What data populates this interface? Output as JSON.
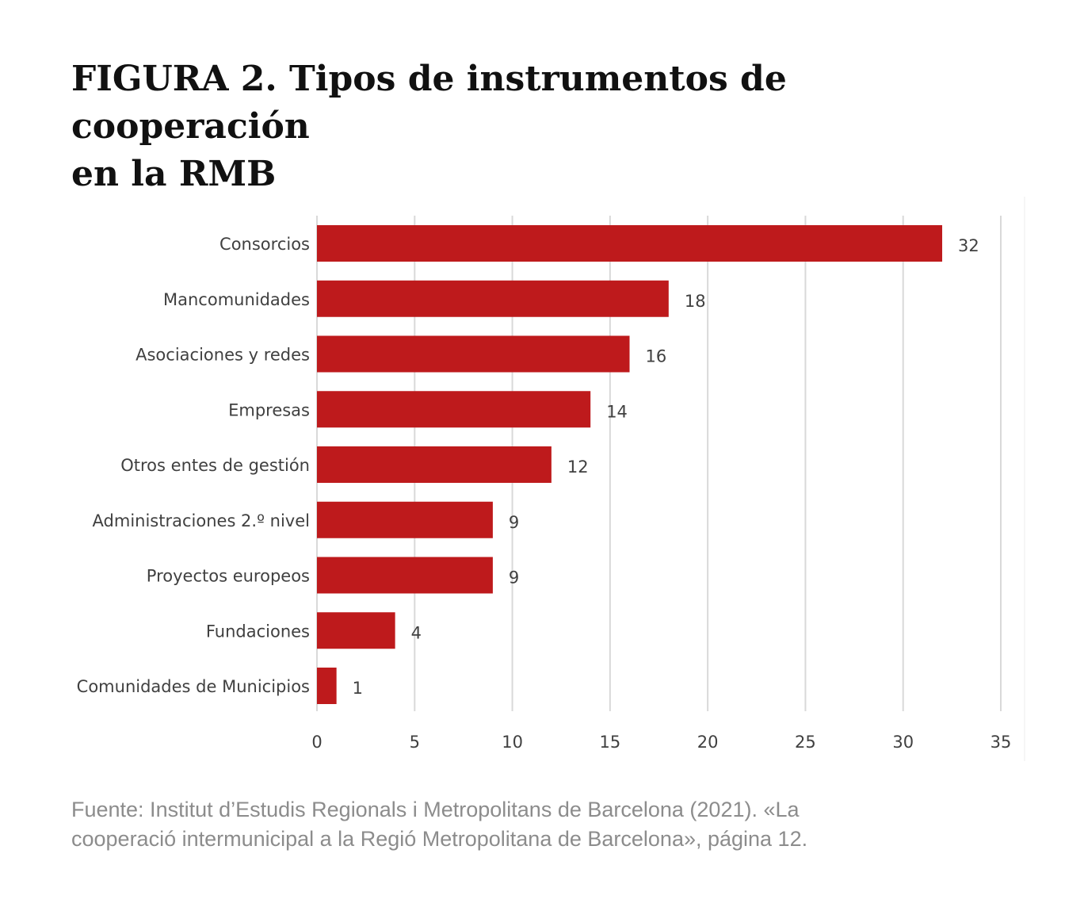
{
  "title_line1": "FIGURA 2. Tipos de instrumentos de cooperación",
  "title_line2": "en la RMB",
  "source_line1": "Fuente: Institut d’Estudis Regionals i Metropolitans de Barcelona (2021). «La",
  "source_line2": "cooperació intermunicipal a la Regió Metropolitana de Barcelona», página 12.",
  "colors": {
    "bar": "#be1a1c",
    "grid": "#d9d9d9",
    "label": "#404040"
  },
  "chart_data": {
    "type": "bar",
    "orientation": "horizontal",
    "categories": [
      "Consorcios",
      "Mancomunidades",
      "Asociaciones y   redes",
      "Empresas",
      "Otros entes de gestión",
      "Administraciones 2.º   nivel",
      "Proyectos europeos",
      "Fundaciones",
      "Comunidades de Municipios"
    ],
    "values": [
      32,
      18,
      16,
      14,
      12,
      9,
      9,
      4,
      1
    ],
    "xticks": [
      0,
      5,
      10,
      15,
      20,
      25,
      30,
      35
    ],
    "xlim": [
      0,
      35
    ],
    "grid": true,
    "data_labels": true
  }
}
